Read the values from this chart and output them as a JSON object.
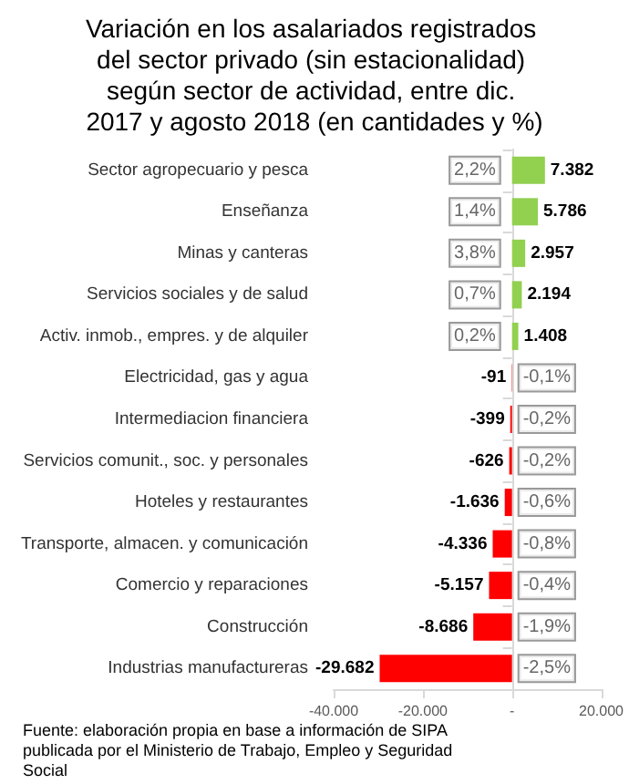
{
  "chart_data": {
    "type": "bar",
    "orientation": "horizontal",
    "title": "Variación en los asalariados registrados del sector privado (sin estacionalidad) según sector de actividad, entre dic. 2017 y agosto 2018 (en cantidades y %)",
    "categories": [
      "Sector agropecuario y pesca",
      "Enseñanza",
      "Minas y canteras",
      "Servicios sociales y de salud",
      "Activ. inmob., empres. y de alquiler",
      "Electricidad, gas y agua",
      "Intermediacion financiera",
      "Servicios comunit., soc. y personales",
      "Hoteles y restaurantes",
      "Transporte, almacen. y comunicación",
      "Comercio y reparaciones",
      "Construcción",
      "Industrias manufactureras"
    ],
    "values": [
      7382,
      5786,
      2957,
      2194,
      1408,
      -91,
      -399,
      -626,
      -1636,
      -4336,
      -5157,
      -8686,
      -29682
    ],
    "colors": [
      "#92d050",
      "#92d050",
      "#92d050",
      "#92d050",
      "#92d050",
      "#ff0000",
      "#ff0000",
      "#ff0000",
      "#ff0000",
      "#ff0000",
      "#ff0000",
      "#ff0000",
      "#ff0000"
    ],
    "value_labels": [
      "7.382",
      "5.786",
      "2.957",
      "2.194",
      "1.408",
      "-91",
      "-399",
      "-626",
      "-1.636",
      "-4.336",
      "-5.157",
      "-8.686",
      "-29.682"
    ],
    "xlim": [
      -40000,
      20000
    ],
    "xticks": [
      {
        "value": -40000,
        "label": "-40.000"
      },
      {
        "value": -20000,
        "label": "-20.000"
      },
      {
        "value": 0,
        "label": "-"
      },
      {
        "value": 20000,
        "label": "20.000"
      }
    ],
    "annotations": [
      {
        "text": "2,2%",
        "y": "Sector agropecuario y pesca"
      },
      {
        "text": "1,4%",
        "y": "Enseñanza"
      },
      {
        "text": "3,8%",
        "y": "Minas y canteras"
      },
      {
        "text": "0,7%",
        "y": "Servicios sociales y de salud"
      },
      {
        "text": "0,2%",
        "y": "Activ. inmob., empres. y de alquiler"
      },
      {
        "text": "-0,1%",
        "y": "Electricidad, gas y agua"
      },
      {
        "text": "-0,2%",
        "y": "Intermediacion financiera"
      },
      {
        "text": "-0,2%",
        "y": "Servicios comunit., soc. y personales"
      },
      {
        "text": "-0,6%",
        "y": "Hoteles y restaurantes"
      },
      {
        "text": "-0,8%",
        "y": "Transporte, almacen. y comunicación"
      },
      {
        "text": "-0,4%",
        "y": "Comercio y reparaciones"
      },
      {
        "text": "-1,9%",
        "y": "Construcción"
      },
      {
        "text": "-2,5%",
        "y": "Industrias manufactureras"
      },
      "Fuente: elaboración propia en base a información de SIPA publicada por el Ministerio de Trabajo, Empleo y Seguridad Social"
    ]
  }
}
